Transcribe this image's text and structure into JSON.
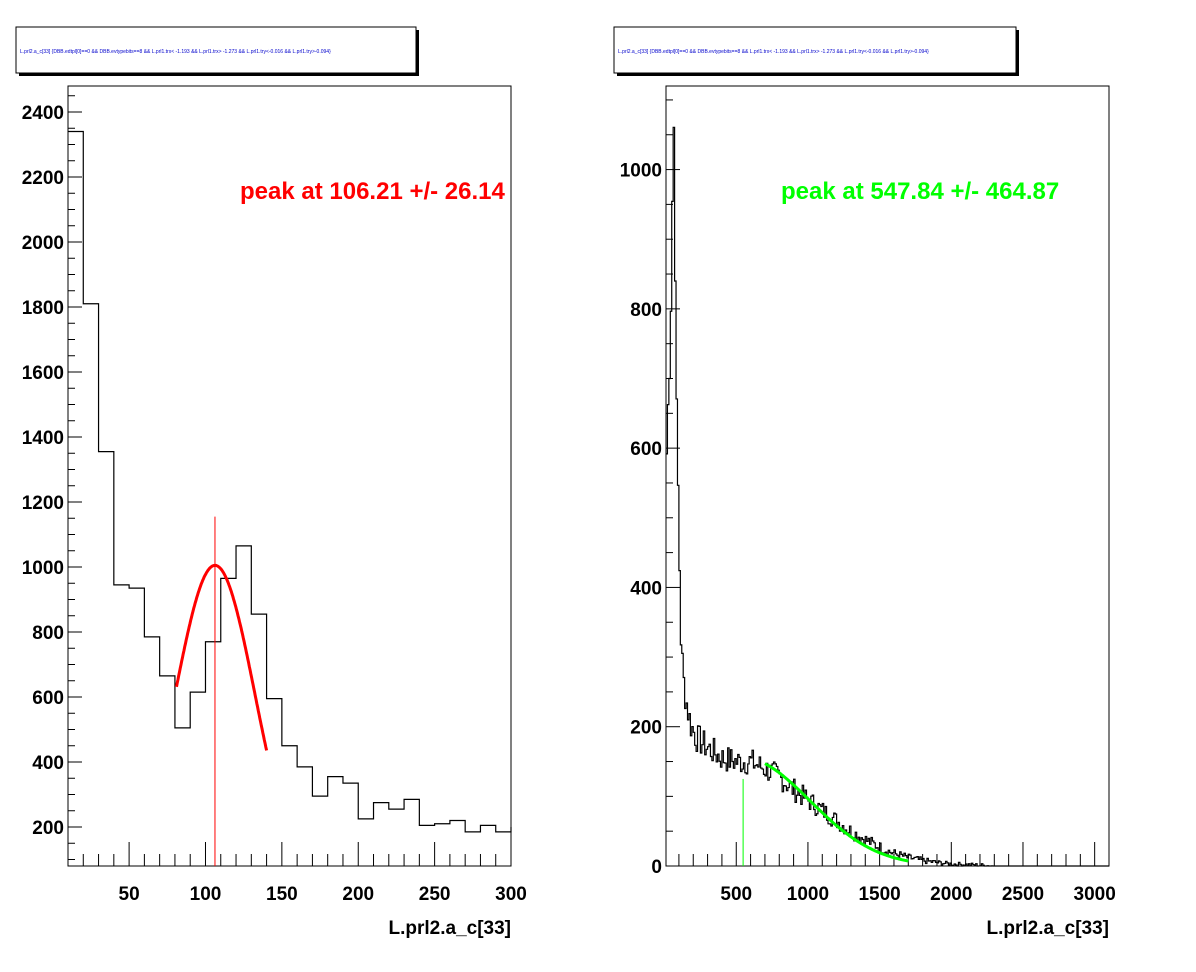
{
  "chart_data": [
    {
      "type": "histogram",
      "title": "L.prl2.a_c[33] {DBB.edtpl[0]==0 && DBB.evtypebits==8 &&  L.prl1.trx< -1.193 && L.prl1.trx> -1.273 && L.prl1.try<-0.016 && L.prl1.try>-0.094}",
      "xlabel": "L.prl2.a_c[33]",
      "ylabel": "",
      "xlim": [
        10,
        300
      ],
      "ylim": [
        80,
        2480
      ],
      "x_ticks": [
        50,
        100,
        150,
        200,
        250,
        300
      ],
      "y_ticks": [
        200,
        400,
        600,
        800,
        1000,
        1200,
        1400,
        1600,
        1800,
        2000,
        2200,
        2400
      ],
      "bins": {
        "edges": [
          10,
          20,
          30,
          40,
          50,
          60,
          70,
          80,
          90,
          100,
          110,
          120,
          130,
          140,
          150,
          160,
          170,
          180,
          190,
          200,
          210,
          220,
          230,
          240,
          250,
          260,
          270,
          280,
          290,
          300
        ],
        "counts": [
          2340,
          1810,
          1355,
          945,
          935,
          785,
          665,
          505,
          615,
          770,
          965,
          1065,
          855,
          595,
          450,
          385,
          295,
          355,
          335,
          225,
          275,
          255,
          285,
          205,
          210,
          220,
          185,
          205,
          185,
          200
        ]
      },
      "fit": {
        "type": "gaussian",
        "mean": 106.21,
        "sigma": 26.14,
        "amplitude": 1005,
        "range": [
          81,
          140
        ],
        "color": "#ff0000"
      },
      "peak_marker": {
        "x": 106.21,
        "y_top": 1155,
        "color": "#ff0000"
      },
      "annotation": {
        "text": "peak at 106.21 +/- 26.14",
        "color": "#ff0000"
      }
    },
    {
      "type": "histogram",
      "title": "L.prl2.a_c[33] {DBB.edtpl[0]==0 && DBB.evtypebits==8 &&  L.prl1.trx< -1.193 && L.prl1.trx> -1.273 && L.prl1.try<-0.016 && L.prl1.try>-0.094}",
      "xlabel": "L.prl2.a_c[33]",
      "ylabel": "",
      "xlim": [
        10,
        3100
      ],
      "ylim": [
        0,
        1120
      ],
      "x_ticks": [
        500,
        1000,
        1500,
        2000,
        2500,
        3000
      ],
      "y_ticks": [
        0,
        200,
        400,
        600,
        800,
        1000
      ],
      "bins": {
        "bin_width": 10,
        "start": 10,
        "anchors": [
          [
            10,
            560
          ],
          [
            30,
            690
          ],
          [
            45,
            820
          ],
          [
            55,
            960
          ],
          [
            65,
            1060
          ],
          [
            75,
            880
          ],
          [
            85,
            640
          ],
          [
            95,
            540
          ],
          [
            105,
            430
          ],
          [
            115,
            330
          ],
          [
            130,
            270
          ],
          [
            150,
            240
          ],
          [
            180,
            205
          ],
          [
            220,
            185
          ],
          [
            300,
            170
          ],
          [
            400,
            155
          ],
          [
            500,
            150
          ],
          [
            600,
            150
          ],
          [
            700,
            140
          ],
          [
            800,
            128
          ],
          [
            900,
            110
          ],
          [
            1000,
            95
          ],
          [
            1100,
            80
          ],
          [
            1200,
            65
          ],
          [
            1300,
            50
          ],
          [
            1400,
            38
          ],
          [
            1500,
            27
          ],
          [
            1600,
            18
          ],
          [
            1700,
            12
          ],
          [
            1800,
            8
          ],
          [
            1900,
            5
          ],
          [
            2000,
            3
          ],
          [
            2100,
            2
          ],
          [
            2200,
            1
          ],
          [
            2300,
            0
          ],
          [
            3100,
            0
          ]
        ]
      },
      "fit": {
        "type": "gaussian",
        "mean": 547.84,
        "sigma": 464.87,
        "amplitude": 155,
        "range": [
          700,
          1700
        ],
        "color": "#00ff00"
      },
      "peak_marker": {
        "x": 547.84,
        "y_top": 125,
        "color": "#00ff00"
      },
      "annotation": {
        "text": "peak at 547.84 +/- 464.87",
        "color": "#00ff00"
      }
    }
  ]
}
